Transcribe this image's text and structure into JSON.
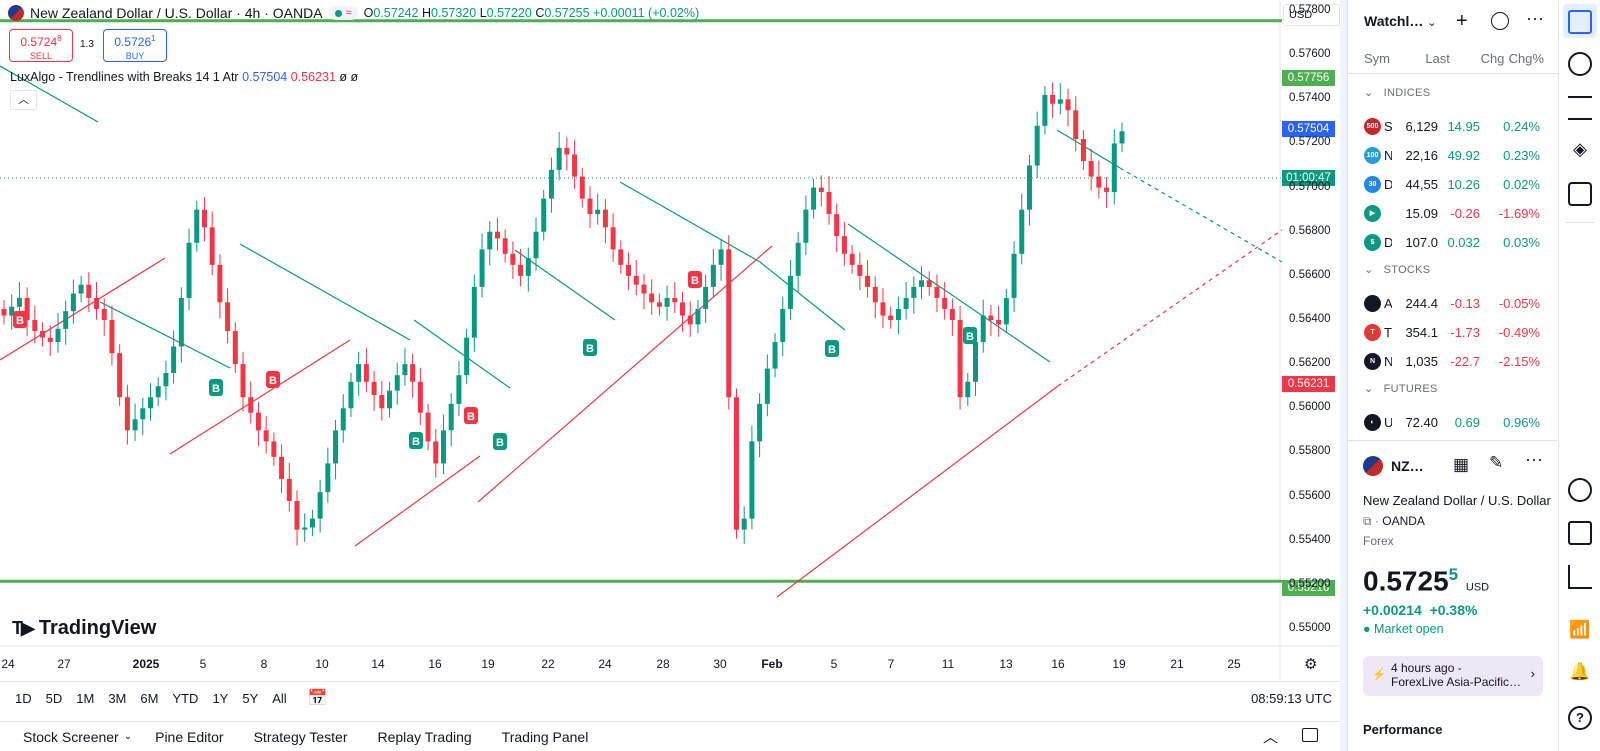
{
  "header": {
    "symbol_title": "New Zealand Dollar / U.S. Dollar · 4h · OANDA",
    "ohlc_o_label": "O",
    "ohlc_o": "0.57242",
    "ohlc_h_label": "H",
    "ohlc_h": "0.57320",
    "ohlc_l_label": "L",
    "ohlc_l": "0.57220",
    "ohlc_c_label": "C",
    "ohlc_c": "0.57255",
    "change": "+0.00011 (+0.02%)",
    "currency": "USD"
  },
  "trade": {
    "sell_price": "0.5724",
    "sell_sup": "8",
    "sell_label": "SELL",
    "spread": "1.3",
    "buy_price": "0.5726",
    "buy_sup": "1",
    "buy_label": "BUY"
  },
  "indicator": {
    "name": "LuxAlgo - Trendlines with Breaks 14 1 Atr",
    "value_up": "0.57504",
    "value_dn": "0.56231",
    "extra": "ø ø"
  },
  "price_axis": {
    "ticks": [
      "0.57800",
      "0.57600",
      "0.57400",
      "0.57200",
      "0.57000",
      "0.56800",
      "0.56600",
      "0.56400",
      "0.56200",
      "0.56000",
      "0.55800",
      "0.55600",
      "0.55400",
      "0.55200",
      "0.55000"
    ],
    "tag_top_line": "0.57756",
    "tag_upper": "0.57504",
    "tag_countdown": "01:00:47",
    "tag_lower": "0.56231",
    "tag_bottom_line": "0.55216"
  },
  "colors": {
    "up": "#089981",
    "down": "#f23645",
    "hline": "#4caf50",
    "accent": "#2962ff"
  },
  "time_axis": {
    "labels": [
      "24",
      "27",
      "2025",
      "5",
      "8",
      "10",
      "14",
      "16",
      "19",
      "22",
      "24",
      "28",
      "30",
      "Feb",
      "5",
      "7",
      "11",
      "13",
      "16",
      "19",
      "21",
      "25"
    ]
  },
  "chart_data": {
    "type": "candlestick",
    "title": "New Zealand Dollar / U.S. Dollar · 4h · OANDA",
    "ylim": [
      0.5495,
      0.5785
    ],
    "horizontal_lines": [
      0.57756,
      0.55216
    ],
    "breakout_labels": [
      "B",
      "B",
      "B",
      "B",
      "B",
      "B",
      "B",
      "B",
      "B",
      "B"
    ],
    "series": [
      {
        "name": "NZDUSD",
        "close_path": [
          0.5642,
          0.5646,
          0.565,
          0.564,
          0.5635,
          0.5632,
          0.563,
          0.5636,
          0.5644,
          0.5652,
          0.5656,
          0.565,
          0.5645,
          0.564,
          0.5625,
          0.5605,
          0.559,
          0.5595,
          0.56,
          0.5605,
          0.561,
          0.5616,
          0.5628,
          0.565,
          0.5675,
          0.569,
          0.5682,
          0.5665,
          0.5648,
          0.5635,
          0.562,
          0.5605,
          0.5598,
          0.559,
          0.5585,
          0.5578,
          0.5568,
          0.5558,
          0.5545,
          0.5546,
          0.555,
          0.5562,
          0.5575,
          0.559,
          0.56,
          0.5612,
          0.562,
          0.5612,
          0.5606,
          0.56,
          0.5608,
          0.5615,
          0.562,
          0.5612,
          0.5598,
          0.5585,
          0.5575,
          0.559,
          0.5602,
          0.5615,
          0.5632,
          0.5655,
          0.5672,
          0.568,
          0.5677,
          0.567,
          0.5665,
          0.566,
          0.5668,
          0.568,
          0.5695,
          0.5708,
          0.5718,
          0.5715,
          0.5705,
          0.5695,
          0.5688,
          0.569,
          0.5682,
          0.5672,
          0.5665,
          0.566,
          0.5656,
          0.5652,
          0.5648,
          0.5646,
          0.565,
          0.5648,
          0.5642,
          0.5638,
          0.5645,
          0.5655,
          0.5665,
          0.5672,
          0.5605,
          0.5545,
          0.555,
          0.5585,
          0.5602,
          0.5618,
          0.563,
          0.5645,
          0.566,
          0.5675,
          0.569,
          0.57,
          0.5698,
          0.5688,
          0.5678,
          0.567,
          0.5665,
          0.566,
          0.5655,
          0.5648,
          0.5642,
          0.564,
          0.5645,
          0.565,
          0.5655,
          0.5658,
          0.5655,
          0.565,
          0.5645,
          0.564,
          0.5605,
          0.5612,
          0.563,
          0.5642,
          0.564,
          0.5638,
          0.565,
          0.567,
          0.569,
          0.571,
          0.5728,
          0.5742,
          0.5738,
          0.574,
          0.5735,
          0.5722,
          0.5712,
          0.5705,
          0.57,
          0.5698,
          0.572,
          0.57255
        ]
      }
    ]
  },
  "range_bar": [
    "1D",
    "5D",
    "1M",
    "3M",
    "6M",
    "YTD",
    "1Y",
    "5Y",
    "All"
  ],
  "clock": "08:59:13 UTC",
  "bottom_tabs": [
    "Stock Screener",
    "Pine Editor",
    "Strategy Tester",
    "Replay Trading",
    "Trading Panel"
  ],
  "watchlist": {
    "title": "Watchl…",
    "cols": [
      "Sym",
      "Last",
      "Chg",
      "Chg%"
    ],
    "sections": [
      {
        "title": "INDICES",
        "rows": [
          {
            "icon": "500",
            "icon_color": "#c62828",
            "sym": "S",
            "last": "6,129",
            "chg": "14.95",
            "chgp": "0.24%",
            "dir": "pos"
          },
          {
            "icon": "100",
            "icon_color": "#2a9fd6",
            "sym": "N",
            "last": "22,16",
            "chg": "49.92",
            "chgp": "0.23%",
            "dir": "pos"
          },
          {
            "icon": "30",
            "icon_color": "#1e88e5",
            "sym": "D",
            "last": "44,55",
            "chg": "10.26",
            "chgp": "0.02%",
            "dir": "pos"
          },
          {
            "icon": "▶",
            "icon_color": "#089981",
            "sym": "",
            "last": "15.09",
            "chg": "-0.26",
            "chgp": "-1.69%",
            "dir": "neg"
          },
          {
            "icon": "$",
            "icon_color": "#089981",
            "sym": "DX",
            "last": "107.0",
            "chg": "0.032",
            "chgp": "0.03%",
            "dir": "pos"
          }
        ]
      },
      {
        "title": "STOCKS",
        "rows": [
          {
            "icon": "",
            "icon_color": "#131722",
            "sym": "A",
            "last": "244.4",
            "chg": "-0.13",
            "chgp": "-0.05%",
            "dir": "neg"
          },
          {
            "icon": "T",
            "icon_color": "#e53935",
            "sym": "T",
            "last": "354.1",
            "chg": "-1.73",
            "chgp": "-0.49%",
            "dir": "neg"
          },
          {
            "icon": "N",
            "icon_color": "#131722",
            "sym": "N",
            "last": "1,035",
            "chg": "-22.7",
            "chgp": "-2.15%",
            "dir": "neg"
          }
        ]
      },
      {
        "title": "FUTURES",
        "rows": [
          {
            "icon": "◐",
            "icon_color": "#131722",
            "sym": "US",
            "last": "72.40",
            "chg": "0.69",
            "chgp": "0.96%",
            "dir": "pos"
          }
        ]
      }
    ]
  },
  "details": {
    "short_sym": "NZ…",
    "full_name": "New Zealand Dollar / U.S. Dollar",
    "exchange": "OANDA",
    "type": "Forex",
    "price": "0.5725",
    "price_sup": "5",
    "currency": "USD",
    "change": "+0.00214",
    "change_pct": "+0.38%",
    "market_status": "Market open",
    "news_time": "4 hours ago",
    "news_dash": "-",
    "news_title": "ForexLive Asia-Pacific…",
    "performance_title": "Performance"
  }
}
